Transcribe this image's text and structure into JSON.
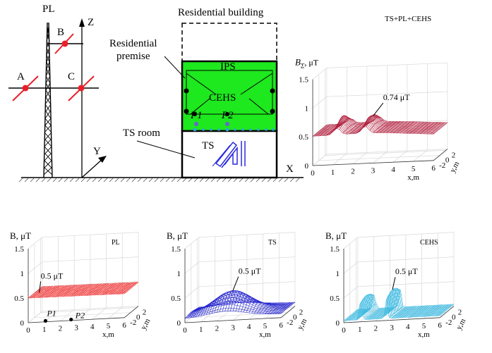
{
  "scheme": {
    "pl_label": "PL",
    "z_label": "Z",
    "y_label": "Y",
    "x_label": "X",
    "point_a": "A",
    "point_b": "B",
    "point_c": "C",
    "building_label": "Residential building",
    "premise_label_1": "Residential",
    "premise_label_2": "premise",
    "ips_label": "IPS",
    "cehs_label": "CEHS",
    "p1_label": "P1",
    "p2_label": "P2",
    "ts_room_label": "TS room",
    "ts_label": "TS"
  },
  "colors": {
    "line_red": "#e8202a",
    "premise_green": "#1ee81e",
    "dot_cyan": "#2aa6e0",
    "ts_blue": "#2a2ae0",
    "sum_mesh": "#b01e3c",
    "pl_mesh": "#ee3030",
    "ts_mesh": "#2020cc",
    "cehs_mesh": "#38b8e0"
  },
  "chart_data": [
    {
      "type": "surface",
      "panel": "sum",
      "title": "TS+PL+CEHS",
      "ylabel_main": "B",
      "ylabel_sub": "Σ",
      "ylabel_unit": ", μT",
      "annotation": "0.74 μT",
      "zlim": [
        0,
        1.5
      ],
      "zticks": [
        "0",
        "0.5",
        "1",
        "1.5"
      ],
      "xticks": [
        "0",
        "1",
        "2",
        "3",
        "4",
        "5",
        "6"
      ],
      "yticks": [
        "2",
        "0",
        "-2"
      ],
      "xlabel": "x,m",
      "ylabel": "y,m",
      "peak_value": 0.74
    },
    {
      "type": "surface",
      "panel": "pl",
      "title": "PL",
      "ylabel": "B, μT",
      "annotation": "0.5 μT",
      "zlim": [
        0,
        1.5
      ],
      "zticks": [
        "0",
        "0.5",
        "1",
        "1.5"
      ],
      "xticks": [
        "0",
        "1",
        "2",
        "3",
        "4",
        "5",
        "6"
      ],
      "yticks": [
        "2",
        "0",
        "-2"
      ],
      "xlabel": "x,m",
      "yaxis_label": "y,m",
      "points": [
        "P1",
        "P2"
      ],
      "level_value": 0.5
    },
    {
      "type": "surface",
      "panel": "ts",
      "title": "TS",
      "ylabel": "B, μT",
      "annotation": "0.5 μT",
      "zlim": [
        0,
        1.5
      ],
      "zticks": [
        "0",
        "0.5",
        "1",
        "1.5"
      ],
      "xticks": [
        "0",
        "1",
        "2",
        "3",
        "4",
        "5",
        "6"
      ],
      "yticks": [
        "2",
        "0",
        "-2"
      ],
      "xlabel": "x,m",
      "yaxis_label": "y,m",
      "peak_value": 0.5
    },
    {
      "type": "surface",
      "panel": "cehs",
      "title": "CEHS",
      "ylabel": "B, μT",
      "annotation": "0.5 μT",
      "zlim": [
        0,
        1.5
      ],
      "zticks": [
        "0",
        "0.5",
        "1",
        "1.5"
      ],
      "xticks": [
        "0",
        "1",
        "2",
        "3",
        "4",
        "5",
        "6"
      ],
      "yticks": [
        "2",
        "0",
        "-2"
      ],
      "xlabel": "x,m",
      "yaxis_label": "y,m",
      "peak_value": 0.5
    }
  ]
}
